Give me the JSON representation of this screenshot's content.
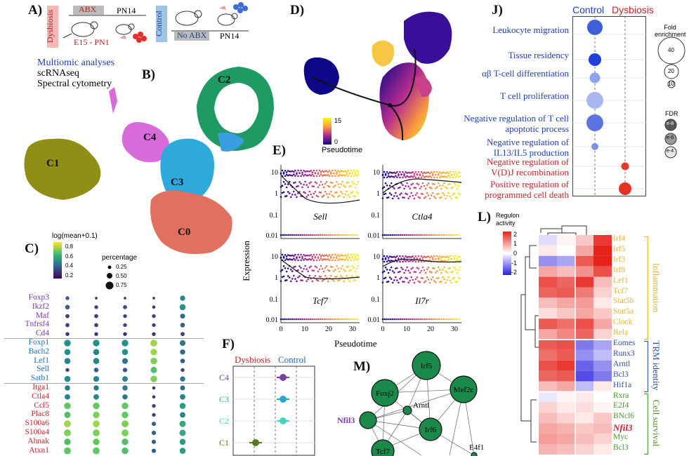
{
  "panelA": {
    "label": "A)",
    "dysbiosis": "Dysbiosis",
    "control": "Control",
    "abx": "ABX",
    "no_abx": "No ABX",
    "age_dys": "PN14",
    "age_ctrl": "PN14",
    "window": "E15 - PN1"
  },
  "panelB": {
    "label": "B)",
    "multiomic": "Multiomic analyses",
    "method1": "scRNAseq",
    "method2": "Spectral  cytometry",
    "clusters": [
      "C0",
      "C1",
      "C2",
      "C3",
      "C4"
    ]
  },
  "panelC": {
    "label": "C)",
    "legend_color_title": "log(mean+0.1)",
    "legend_color_ticks": [
      "0.8",
      "0.6",
      "0.4",
      "0.2"
    ],
    "legend_size_title": "percentage",
    "legend_size_ticks": [
      "0.25",
      "0.50",
      "0.75"
    ],
    "genes": [
      {
        "name": "Foxp3",
        "group": "purple",
        "values": [
          0.25,
          0.15,
          0.15,
          0.15,
          0.45
        ],
        "pct": [
          0.3,
          0.08,
          0.08,
          0.08,
          0.55
        ]
      },
      {
        "name": "Ikzf2",
        "group": "purple",
        "values": [
          0.3,
          0.2,
          0.25,
          0.15,
          0.5
        ],
        "pct": [
          0.45,
          0.3,
          0.35,
          0.2,
          0.7
        ]
      },
      {
        "name": "Maf",
        "group": "purple",
        "values": [
          0.2,
          0.2,
          0.2,
          0.2,
          0.35
        ],
        "pct": [
          0.35,
          0.35,
          0.3,
          0.3,
          0.5
        ]
      },
      {
        "name": "Tnfrsf4",
        "group": "purple",
        "values": [
          0.2,
          0.2,
          0.2,
          0.2,
          0.3
        ],
        "pct": [
          0.35,
          0.35,
          0.3,
          0.3,
          0.45
        ]
      },
      {
        "name": "Cd4",
        "group": "purple",
        "values": [
          0.15,
          0.15,
          0.15,
          0.15,
          0.2
        ],
        "pct": [
          0.3,
          0.3,
          0.3,
          0.3,
          0.35
        ]
      },
      {
        "name": "Foxp1",
        "group": "blue",
        "values": [
          0.5,
          0.5,
          0.5,
          0.85,
          0.4
        ],
        "pct": [
          0.8,
          0.8,
          0.8,
          0.85,
          0.65
        ]
      },
      {
        "name": "Bach2",
        "group": "blue",
        "values": [
          0.5,
          0.45,
          0.5,
          0.85,
          0.35
        ],
        "pct": [
          0.7,
          0.7,
          0.7,
          0.8,
          0.55
        ]
      },
      {
        "name": "Lef1",
        "group": "blue",
        "values": [
          0.45,
          0.45,
          0.4,
          0.8,
          0.3
        ],
        "pct": [
          0.7,
          0.7,
          0.65,
          0.8,
          0.45
        ]
      },
      {
        "name": "Sell",
        "group": "blue",
        "values": [
          0.2,
          0.3,
          0.25,
          0.7,
          0.2
        ],
        "pct": [
          0.3,
          0.45,
          0.4,
          0.75,
          0.3
        ]
      },
      {
        "name": "Satb1",
        "group": "blue",
        "values": [
          0.5,
          0.45,
          0.45,
          0.8,
          0.4
        ],
        "pct": [
          0.7,
          0.65,
          0.6,
          0.8,
          0.55
        ]
      },
      {
        "name": "Itga1",
        "group": "red",
        "values": [
          0.4,
          0.4,
          0.4,
          0.15,
          0.35
        ],
        "pct": [
          0.55,
          0.55,
          0.55,
          0.2,
          0.5
        ]
      },
      {
        "name": "Ctla4",
        "group": "red",
        "values": [
          0.45,
          0.45,
          0.4,
          0.15,
          0.45
        ],
        "pct": [
          0.6,
          0.6,
          0.55,
          0.2,
          0.6
        ]
      },
      {
        "name": "Ccl5",
        "group": "red",
        "values": [
          0.75,
          0.75,
          0.75,
          0.2,
          0.55
        ],
        "pct": [
          0.8,
          0.8,
          0.8,
          0.3,
          0.7
        ]
      },
      {
        "name": "Plac8",
        "group": "red",
        "values": [
          0.7,
          0.8,
          0.75,
          0.2,
          0.45
        ],
        "pct": [
          0.75,
          0.8,
          0.8,
          0.3,
          0.6
        ]
      },
      {
        "name": "S100a6",
        "group": "red",
        "values": [
          0.85,
          0.85,
          0.8,
          0.3,
          0.6
        ],
        "pct": [
          0.85,
          0.85,
          0.85,
          0.4,
          0.75
        ]
      },
      {
        "name": "S100a4",
        "group": "red",
        "values": [
          0.8,
          0.8,
          0.8,
          0.3,
          0.6
        ],
        "pct": [
          0.85,
          0.85,
          0.85,
          0.4,
          0.75
        ]
      },
      {
        "name": "Ahnak",
        "group": "red",
        "values": [
          0.7,
          0.75,
          0.7,
          0.3,
          0.55
        ],
        "pct": [
          0.8,
          0.8,
          0.8,
          0.4,
          0.7
        ]
      },
      {
        "name": "Atxn1",
        "group": "red",
        "values": [
          0.75,
          0.75,
          0.7,
          0.3,
          0.55
        ],
        "pct": [
          0.85,
          0.85,
          0.8,
          0.4,
          0.7
        ]
      }
    ]
  },
  "panelD": {
    "label": "D)",
    "legend_title": "Pseudotime",
    "legend_ticks": [
      "15",
      "0"
    ]
  },
  "panelE": {
    "label": "E)",
    "ylabel": "Expression",
    "xlabel": "Pseudotime",
    "yticks": [
      "10",
      "1",
      "0.1",
      "0.01"
    ],
    "xticks": [
      "0",
      "10",
      "20",
      "30"
    ],
    "genes": [
      "Sell",
      "Ctla4",
      "Tcf7",
      "Il7r"
    ]
  },
  "panelF": {
    "label": "F)",
    "dysbiosis": "Dysbiosis",
    "control": "Control",
    "rows": [
      {
        "name": "C4",
        "color": "#7b3fa0",
        "value": 0.55
      },
      {
        "name": "C3",
        "color": "#2aa7c9",
        "value": 0.55
      },
      {
        "name": "C2",
        "color": "#3fd6c0",
        "value": 0.55
      },
      {
        "name": "C1",
        "color": "#5a7a1e",
        "value": -1.4
      }
    ]
  },
  "panelJ": {
    "label": "J)",
    "control": "Control",
    "dysbiosis": "Dysbiosis",
    "fold_title": "Fold enrichment",
    "fold_ticks": [
      "40",
      "20",
      "10"
    ],
    "fdr_title": "FDR",
    "fdr_ticks": [
      "e-8",
      "e-6",
      "e-4"
    ],
    "terms": [
      {
        "label": "Leukocyte migration",
        "side": "control",
        "size": 22,
        "color": "#3d5fd9"
      },
      {
        "label": "Tissue residency",
        "side": "control",
        "size": 18,
        "color": "#1f3fd6"
      },
      {
        "label": "αβ T-cell differentiation",
        "side": "control",
        "size": 15,
        "color": "#8fa3ea"
      },
      {
        "label": "T cell proliferation",
        "side": "control",
        "size": 24,
        "color": "#a9b7ee"
      },
      {
        "label": "Negative regulation of T cell apoptotic process",
        "side": "control",
        "size": 24,
        "color": "#5b74df"
      },
      {
        "label": "Negative regulation of IL13/IL5 production",
        "side": "control",
        "size": 10,
        "color": "#7d90e6"
      },
      {
        "label": "Negative regulation of V(D)J recombination",
        "side": "dysbiosis",
        "size": 11,
        "color": "#e23a2a"
      },
      {
        "label": "Positive regulation of programmed cell death",
        "side": "dysbiosis",
        "size": 18,
        "color": "#e53024"
      }
    ]
  },
  "panelL": {
    "label": "L)",
    "legend_title": "Regulon activity",
    "legend_ticks": [
      "2",
      "1",
      "0",
      "-1",
      "-2"
    ],
    "groups": [
      {
        "name": "Inflammation",
        "color": "#e7b33a",
        "genes": [
          "Irf4",
          "Irf5",
          "Irf3",
          "Irf8",
          "Lef1",
          "Tcf7",
          "Stat5b",
          "Stat5a",
          "Clock",
          "Rela"
        ]
      },
      {
        "name": "TRM identity",
        "color": "#2f4fa8",
        "genes": [
          "Eomes",
          "Runx3",
          "Arntl",
          "Bcl3",
          "Hif1a"
        ]
      },
      {
        "name": "Cell survival",
        "color": "#4a9a2a",
        "genes": [
          "Rxra",
          "E2f4",
          "BNcl6",
          "Nfil3",
          "Myc",
          "Bcl3"
        ]
      }
    ]
  },
  "panelM": {
    "label": "M)",
    "nodes": [
      "Irf5",
      "Foxj2",
      "Mef2c",
      "Arntl",
      "Nfil3",
      "Irf6",
      "Tcf7",
      "E4f1"
    ]
  }
}
